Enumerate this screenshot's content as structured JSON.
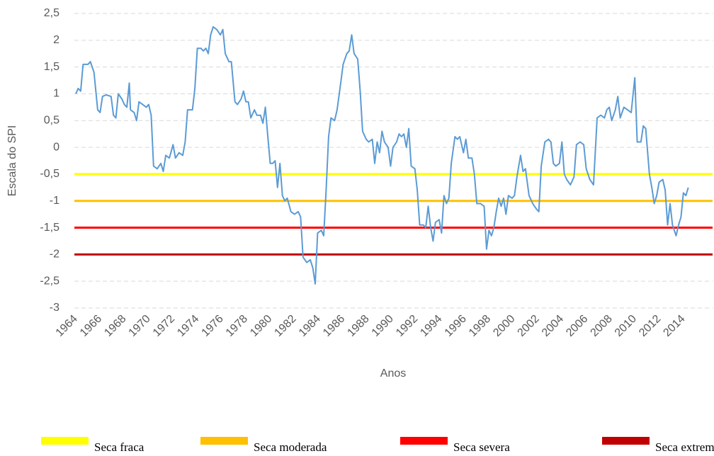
{
  "chart_data": {
    "type": "line",
    "y_label": "Escala do SPI",
    "x_label": "Anos",
    "x": [
      1964.0,
      1964.2,
      1964.4,
      1964.6,
      1965.0,
      1965.2,
      1965.5,
      1965.8,
      1966.0,
      1966.2,
      1966.5,
      1966.9,
      1967.1,
      1967.3,
      1967.5,
      1967.8,
      1968.0,
      1968.2,
      1968.4,
      1968.5,
      1968.8,
      1969.0,
      1969.2,
      1969.5,
      1969.8,
      1970.0,
      1970.2,
      1970.4,
      1970.7,
      1971.0,
      1971.2,
      1971.4,
      1971.7,
      1972.0,
      1972.2,
      1972.5,
      1972.8,
      1973.0,
      1973.2,
      1973.6,
      1973.8,
      1974.0,
      1974.3,
      1974.5,
      1974.7,
      1974.9,
      1975.1,
      1975.3,
      1975.6,
      1975.9,
      1976.1,
      1976.3,
      1976.6,
      1976.8,
      1977.1,
      1977.3,
      1977.6,
      1977.8,
      1978.0,
      1978.2,
      1978.4,
      1978.7,
      1978.9,
      1979.2,
      1979.4,
      1979.6,
      1979.8,
      1980.0,
      1980.2,
      1980.4,
      1980.6,
      1980.8,
      1981.0,
      1981.2,
      1981.4,
      1981.7,
      1982.0,
      1982.3,
      1982.5,
      1982.7,
      1983.0,
      1983.3,
      1983.5,
      1983.7,
      1983.9,
      1984.2,
      1984.4,
      1984.6,
      1984.8,
      1985.0,
      1985.3,
      1985.5,
      1985.8,
      1986.0,
      1986.3,
      1986.5,
      1986.7,
      1986.9,
      1987.2,
      1987.4,
      1987.6,
      1987.9,
      1988.1,
      1988.4,
      1988.6,
      1988.8,
      1989.0,
      1989.2,
      1989.4,
      1989.7,
      1989.9,
      1990.1,
      1990.4,
      1990.6,
      1990.8,
      1991.0,
      1991.2,
      1991.4,
      1991.6,
      1991.9,
      1992.1,
      1992.3,
      1992.6,
      1992.8,
      1993.0,
      1993.2,
      1993.4,
      1993.6,
      1993.9,
      1994.1,
      1994.3,
      1994.5,
      1994.7,
      1994.9,
      1995.2,
      1995.4,
      1995.6,
      1995.9,
      1996.1,
      1996.3,
      1996.6,
      1996.8,
      1997.0,
      1997.3,
      1997.6,
      1997.8,
      1998.0,
      1998.2,
      1998.4,
      1998.6,
      1998.8,
      1999.0,
      1999.2,
      1999.4,
      1999.6,
      1999.9,
      2000.1,
      2000.3,
      2000.6,
      2000.8,
      2001.0,
      2001.3,
      2001.6,
      2001.9,
      2002.1,
      2002.3,
      2002.6,
      2002.9,
      2003.1,
      2003.3,
      2003.5,
      2003.8,
      2004.0,
      2004.2,
      2004.4,
      2004.7,
      2005.0,
      2005.2,
      2005.5,
      2005.8,
      2006.0,
      2006.3,
      2006.6,
      2006.9,
      2007.2,
      2007.5,
      2007.7,
      2007.9,
      2008.1,
      2008.4,
      2008.6,
      2008.8,
      2009.1,
      2009.4,
      2009.7,
      2010.0,
      2010.2,
      2010.5,
      2010.7,
      2010.9,
      2011.2,
      2011.4,
      2011.6,
      2011.8,
      2012.0,
      2012.3,
      2012.5,
      2012.7,
      2012.9,
      2013.1,
      2013.4,
      2013.6,
      2013.8,
      2014.0,
      2014.2,
      2014.4
    ],
    "series": [
      {
        "color": "#5b9bd5",
        "values": [
          1.0,
          1.1,
          1.05,
          1.55,
          1.55,
          1.6,
          1.4,
          0.7,
          0.65,
          0.95,
          0.98,
          0.95,
          0.6,
          0.55,
          1.0,
          0.9,
          0.8,
          0.75,
          1.2,
          0.7,
          0.65,
          0.5,
          0.85,
          0.8,
          0.75,
          0.8,
          0.6,
          -0.35,
          -0.4,
          -0.3,
          -0.45,
          -0.15,
          -0.2,
          0.05,
          -0.2,
          -0.1,
          -0.15,
          0.1,
          0.7,
          0.7,
          1.1,
          1.85,
          1.85,
          1.8,
          1.85,
          1.75,
          2.1,
          2.25,
          2.2,
          2.1,
          2.2,
          1.75,
          1.6,
          1.6,
          0.85,
          0.8,
          0.9,
          1.05,
          0.85,
          0.85,
          0.55,
          0.7,
          0.6,
          0.6,
          0.45,
          0.75,
          0.2,
          -0.3,
          -0.3,
          -0.25,
          -0.75,
          -0.3,
          -0.9,
          -1.0,
          -0.95,
          -1.2,
          -1.25,
          -1.2,
          -1.3,
          -2.05,
          -2.15,
          -2.1,
          -2.25,
          -2.55,
          -1.6,
          -1.55,
          -1.65,
          -0.8,
          0.2,
          0.55,
          0.5,
          0.7,
          1.2,
          1.55,
          1.75,
          1.8,
          2.1,
          1.75,
          1.65,
          1.05,
          0.3,
          0.15,
          0.1,
          0.15,
          -0.3,
          0.1,
          -0.1,
          0.3,
          0.1,
          0.0,
          -0.35,
          0.0,
          0.1,
          0.25,
          0.2,
          0.25,
          0.0,
          0.35,
          -0.35,
          -0.4,
          -0.8,
          -1.45,
          -1.45,
          -1.5,
          -1.1,
          -1.5,
          -1.75,
          -1.4,
          -1.35,
          -1.6,
          -0.9,
          -1.05,
          -0.95,
          -0.3,
          0.2,
          0.15,
          0.2,
          -0.1,
          0.15,
          -0.2,
          -0.2,
          -0.5,
          -1.05,
          -1.05,
          -1.1,
          -1.9,
          -1.55,
          -1.65,
          -1.5,
          -1.2,
          -0.95,
          -1.1,
          -0.95,
          -1.25,
          -0.9,
          -0.95,
          -0.9,
          -0.55,
          -0.15,
          -0.45,
          -0.4,
          -0.9,
          -1.05,
          -1.15,
          -1.2,
          -0.35,
          0.1,
          0.15,
          0.1,
          -0.3,
          -0.35,
          -0.3,
          0.1,
          -0.5,
          -0.6,
          -0.7,
          -0.55,
          0.05,
          0.1,
          0.05,
          -0.4,
          -0.6,
          -0.7,
          0.55,
          0.6,
          0.55,
          0.7,
          0.75,
          0.5,
          0.7,
          0.95,
          0.55,
          0.75,
          0.7,
          0.65,
          1.3,
          0.1,
          0.1,
          0.4,
          0.35,
          -0.5,
          -0.75,
          -1.05,
          -0.9,
          -0.65,
          -0.6,
          -0.8,
          -1.45,
          -1.05,
          -1.45,
          -1.65,
          -1.45,
          -1.3,
          -0.85,
          -0.9,
          -0.75
        ]
      }
    ],
    "reference_lines": [
      {
        "name": "Seca fraca",
        "color": "#ffff00",
        "value": -0.5
      },
      {
        "name": "Seca moderada",
        "color": "#ffc000",
        "value": -1
      },
      {
        "name": "Seca severa",
        "color": "#ff0000",
        "value": -1.5
      },
      {
        "name": "Seca extrema",
        "color": "#c00000",
        "value": -2
      }
    ],
    "xlim": [
      1964,
      2016.4
    ],
    "xticks": [
      1964,
      1966,
      1968,
      1970,
      1972,
      1974,
      1976,
      1978,
      1980,
      1982,
      1984,
      1986,
      1988,
      1990,
      1992,
      1994,
      1996,
      1998,
      2000,
      2002,
      2004,
      2006,
      2008,
      2010,
      2012,
      2014
    ],
    "ylim": [
      -3,
      2.5
    ],
    "yticks": [
      {
        "value": 2.5,
        "label": "2,5"
      },
      2,
      {
        "value": 1.5,
        "label": "1,5"
      },
      1,
      {
        "value": 0.5,
        "label": "0,5"
      },
      0,
      {
        "value": -0.5,
        "label": "-0,5"
      },
      -1,
      {
        "value": -1.5,
        "label": "-1,5"
      },
      -2,
      {
        "value": -2.5,
        "label": "-2,5"
      },
      -3
    ],
    "grid": true,
    "legend": "bottom"
  }
}
